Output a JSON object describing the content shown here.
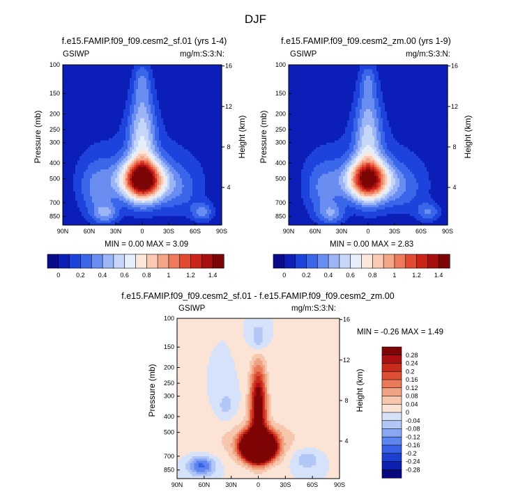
{
  "figure": {
    "title": "DJF"
  },
  "colors": {
    "scale": [
      "#0a0a8c",
      "#0b1fb8",
      "#1e43dc",
      "#3a66ea",
      "#6a8df2",
      "#9cb5f6",
      "#c6d6f8",
      "#e6eefb",
      "#fde7dc",
      "#f9c9b3",
      "#f4a487",
      "#ee7a5c",
      "#e34a32",
      "#cb2419",
      "#a80f0f",
      "#7c0606"
    ],
    "diff_scale": [
      "#08087e",
      "#0b1fb0",
      "#1c3fd2",
      "#3961e6",
      "#5f85ef",
      "#89a7f3",
      "#b2c7f6",
      "#d6e2fa",
      "#fbe4d6",
      "#f6c7ad",
      "#f0a382",
      "#e97a5a",
      "#dd4f35",
      "#c92b1b",
      "#ad1010",
      "#7e0505"
    ],
    "accent": "#000000"
  },
  "chart_data": [
    {
      "type": "heatmap",
      "title": "f.e15.FAMIP.f09_f09.cesm2_sf.01 (yrs 1-4)",
      "left_label": "GSIWP",
      "right_label": "mg/m:S:3:N:",
      "ylabel": "Pressure (mb)",
      "y2label": "Height (km)",
      "xticks": [
        "90N",
        "60N",
        "30N",
        "0",
        "30S",
        "60S",
        "90S"
      ],
      "yticks": [
        100,
        150,
        200,
        250,
        300,
        400,
        500,
        700,
        850
      ],
      "y2ticks": [
        16,
        12,
        8,
        4
      ],
      "stats": "MIN =  0.00   MAX =  3.09",
      "min": 0.0,
      "max": 3.09,
      "colorbar": {
        "labels": [
          "0",
          "0.2",
          "0.4",
          "0.6",
          "0.8",
          "1",
          "1.2",
          "1.4"
        ]
      }
    },
    {
      "type": "heatmap",
      "title": "f.e15.FAMIP.f09_f09.cesm2_zm.00 (yrs 1-9)",
      "left_label": "GSIWP",
      "right_label": "mg/m:S:3:N:",
      "ylabel": "Pressure (mb)",
      "y2label": "Height (km)",
      "xticks": [
        "90N",
        "60N",
        "30N",
        "0",
        "30S",
        "60S",
        "90S"
      ],
      "yticks": [
        100,
        150,
        200,
        250,
        300,
        400,
        500,
        700,
        850
      ],
      "y2ticks": [
        16,
        12,
        8,
        4
      ],
      "stats": "MIN =  0.00   MAX =  2.83",
      "min": 0.0,
      "max": 2.83,
      "colorbar": {
        "labels": [
          "0",
          "0.2",
          "0.4",
          "0.6",
          "0.8",
          "1",
          "1.2",
          "1.4"
        ]
      }
    },
    {
      "type": "heatmap",
      "title": "f.e15.FAMIP.f09_f09.cesm2_sf.01 - f.e15.FAMIP.f09_f09.cesm2_zm.00",
      "left_label": "GSIWP",
      "right_label": "mg/m:S:3:N:",
      "ylabel": "Pressure (mb)",
      "y2label": "Height (km)",
      "xticks": [
        "90N",
        "60N",
        "30N",
        "0",
        "30S",
        "60S",
        "90S"
      ],
      "yticks": [
        100,
        150,
        200,
        250,
        300,
        400,
        500,
        700,
        850
      ],
      "y2ticks": [
        16,
        12,
        8,
        4
      ],
      "stats": "MIN = -0.26   MAX =  1.49",
      "min": -0.26,
      "max": 1.49,
      "colorbar": {
        "labels": [
          "0.28",
          "0.24",
          "0.2",
          "0.16",
          "0.12",
          "0.08",
          "0.04",
          "0",
          "-0.04",
          "-0.08",
          "-0.12",
          "-0.16",
          "-0.2",
          "-0.24",
          "-0.28"
        ]
      }
    }
  ]
}
